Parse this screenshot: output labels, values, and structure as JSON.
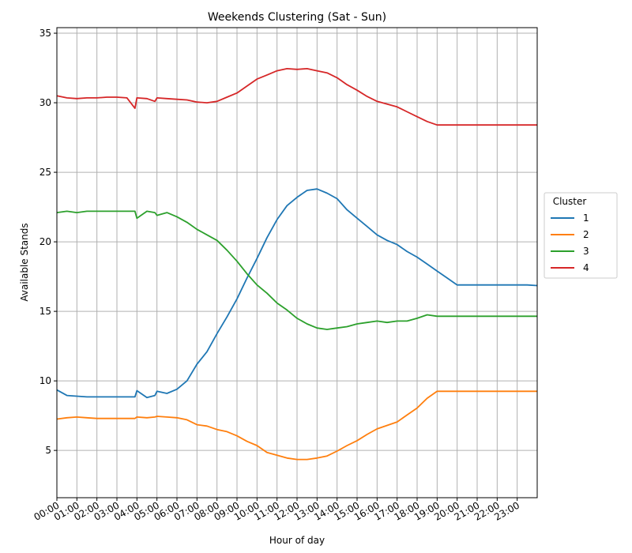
{
  "chart_data": {
    "type": "line",
    "title": "Weekends Clustering (Sat - Sun)",
    "xlabel": "Hour of day",
    "ylabel": "Available Stands",
    "ylim": [
      1.6,
      35.4
    ],
    "xlim": [
      0,
      24
    ],
    "grid": true,
    "legend_position": "right-center",
    "legend_title": "Cluster",
    "x_tick_labels": [
      "00:00",
      "01:00",
      "02:00",
      "03:00",
      "04:00",
      "05:00",
      "06:00",
      "07:00",
      "08:00",
      "09:00",
      "10:00",
      "11:00",
      "12:00",
      "13:00",
      "14:00",
      "15:00",
      "16:00",
      "17:00",
      "18:00",
      "19:00",
      "20:00",
      "21:00",
      "22:00",
      "23:00"
    ],
    "y_ticks": [
      5,
      10,
      15,
      20,
      25,
      30,
      35
    ],
    "x": [
      0,
      0.5,
      1,
      1.5,
      2,
      2.5,
      3,
      3.5,
      3.9,
      4,
      4.5,
      4.9,
      5,
      5.5,
      6,
      6.5,
      7,
      7.5,
      8,
      8.5,
      9,
      9.5,
      10,
      10.5,
      11,
      11.5,
      12,
      12.5,
      13,
      13.5,
      14,
      14.5,
      15,
      15.5,
      16,
      16.5,
      17,
      17.5,
      18,
      18.5,
      19,
      19.5,
      20,
      20.5,
      21,
      21.5,
      22,
      22.5,
      23,
      23.5,
      24
    ],
    "series": [
      {
        "name": "1",
        "color": "#1f77b4",
        "values": [
          9.35,
          8.95,
          8.9,
          8.85,
          8.85,
          8.85,
          8.85,
          8.85,
          8.85,
          9.3,
          8.8,
          8.95,
          9.25,
          9.1,
          9.4,
          10.0,
          11.2,
          12.1,
          13.4,
          14.6,
          15.9,
          17.4,
          18.8,
          20.3,
          21.6,
          22.6,
          23.2,
          23.7,
          23.8,
          23.5,
          23.1,
          22.3,
          21.7,
          21.1,
          20.5,
          20.1,
          19.8,
          19.3,
          18.9,
          18.4,
          17.9,
          17.4,
          16.9,
          16.9,
          16.9,
          16.9,
          16.9,
          16.9,
          16.9,
          16.9,
          16.85
        ]
      },
      {
        "name": "2",
        "color": "#ff7f0e",
        "values": [
          7.25,
          7.35,
          7.4,
          7.35,
          7.3,
          7.3,
          7.3,
          7.3,
          7.3,
          7.4,
          7.35,
          7.4,
          7.45,
          7.4,
          7.35,
          7.2,
          6.85,
          6.75,
          6.5,
          6.35,
          6.05,
          5.65,
          5.35,
          4.85,
          4.65,
          4.45,
          4.35,
          4.35,
          4.45,
          4.6,
          4.95,
          5.35,
          5.7,
          6.15,
          6.55,
          6.8,
          7.05,
          7.55,
          8.05,
          8.75,
          9.25,
          9.25,
          9.25,
          9.25,
          9.25,
          9.25,
          9.25,
          9.25,
          9.25,
          9.25,
          9.25
        ]
      },
      {
        "name": "3",
        "color": "#2ca02c",
        "values": [
          22.1,
          22.2,
          22.1,
          22.2,
          22.2,
          22.2,
          22.2,
          22.2,
          22.2,
          21.7,
          22.2,
          22.1,
          21.9,
          22.1,
          21.8,
          21.4,
          20.9,
          20.5,
          20.1,
          19.4,
          18.6,
          17.7,
          16.9,
          16.3,
          15.6,
          15.1,
          14.5,
          14.1,
          13.8,
          13.7,
          13.8,
          13.9,
          14.1,
          14.2,
          14.3,
          14.2,
          14.3,
          14.3,
          14.5,
          14.75,
          14.65,
          14.65,
          14.65,
          14.65,
          14.65,
          14.65,
          14.65,
          14.65,
          14.65,
          14.65,
          14.65
        ]
      },
      {
        "name": "4",
        "color": "#d62728",
        "values": [
          30.5,
          30.35,
          30.3,
          30.35,
          30.35,
          30.4,
          30.4,
          30.35,
          29.6,
          30.35,
          30.3,
          30.1,
          30.35,
          30.3,
          30.25,
          30.2,
          30.05,
          30.0,
          30.1,
          30.4,
          30.7,
          31.2,
          31.7,
          32.0,
          32.3,
          32.45,
          32.4,
          32.45,
          32.3,
          32.15,
          31.8,
          31.3,
          30.9,
          30.45,
          30.1,
          29.9,
          29.7,
          29.35,
          29.0,
          28.65,
          28.4,
          28.4,
          28.4,
          28.4,
          28.4,
          28.4,
          28.4,
          28.4,
          28.4,
          28.4,
          28.4
        ]
      }
    ]
  }
}
